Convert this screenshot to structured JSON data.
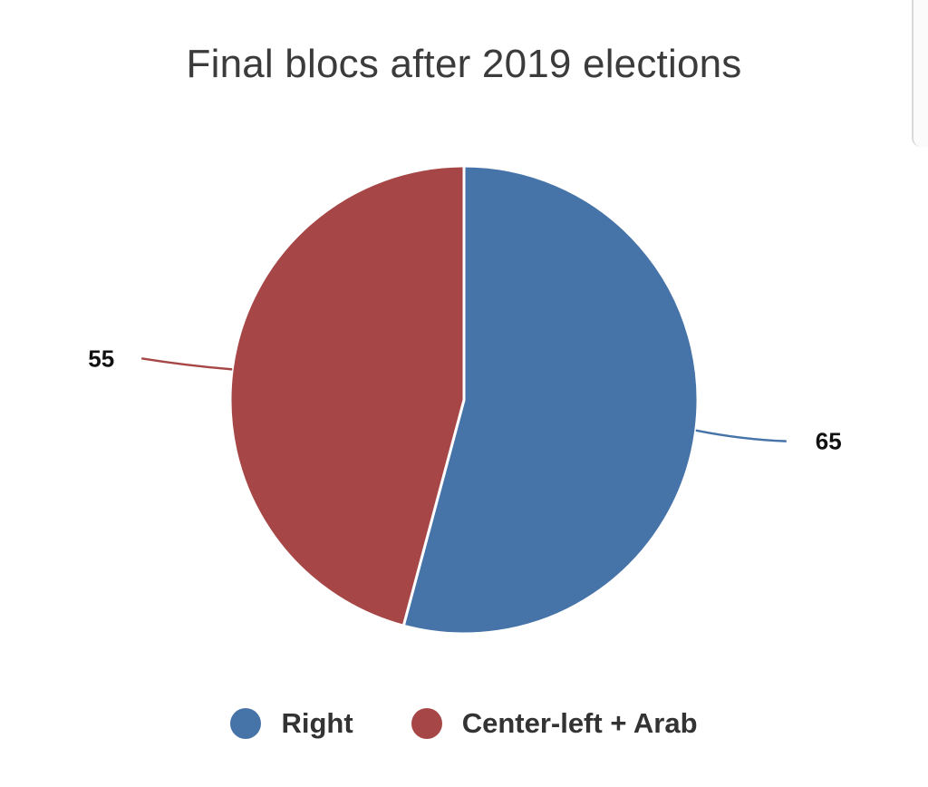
{
  "chart_data": {
    "type": "pie",
    "title": "Final blocs after 2019 elections",
    "categories": [
      "Right",
      "Center-left + Arab"
    ],
    "values": [
      65,
      55
    ],
    "data_labels": [
      "65",
      "55"
    ],
    "colors": [
      "#4673a8",
      "#a64646"
    ],
    "legend_position": "bottom",
    "start_angle_deg": 0,
    "direction": "clockwise"
  }
}
